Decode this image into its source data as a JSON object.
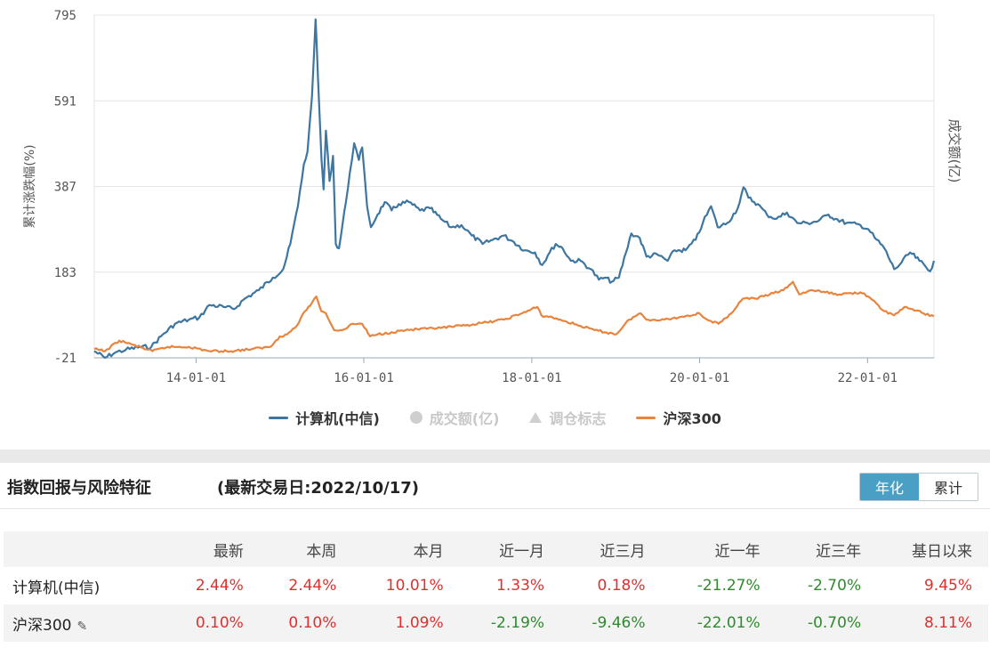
{
  "chart_data": {
    "type": "line",
    "ylabel": "累计涨跌幅(%)",
    "y2label": "成交额(亿)",
    "yticks": [
      -21,
      183,
      387,
      591,
      795
    ],
    "ylim": [
      -21,
      795
    ],
    "xticks": [
      "14-01-01",
      "16-01-01",
      "18-01-01",
      "20-01-01",
      "22-01-01"
    ],
    "x_range": [
      "2012-10-15",
      "2022-10-17"
    ],
    "grid": true,
    "legend_position": "bottom",
    "series": [
      {
        "name": "计算机(中信)",
        "color": "#3d76a0",
        "points": [
          [
            "2012-10-15",
            -5
          ],
          [
            "2012-12-01",
            -21
          ],
          [
            "2013-01-15",
            -8
          ],
          [
            "2013-03-01",
            -2
          ],
          [
            "2013-05-01",
            5
          ],
          [
            "2013-06-20",
            5
          ],
          [
            "2013-08-01",
            30
          ],
          [
            "2013-10-01",
            60
          ],
          [
            "2013-12-01",
            70
          ],
          [
            "2014-01-15",
            75
          ],
          [
            "2014-03-01",
            105
          ],
          [
            "2014-05-01",
            100
          ],
          [
            "2014-06-15",
            95
          ],
          [
            "2014-08-01",
            120
          ],
          [
            "2014-10-01",
            140
          ],
          [
            "2014-12-01",
            170
          ],
          [
            "2015-01-15",
            190
          ],
          [
            "2015-02-15",
            250
          ],
          [
            "2015-03-20",
            340
          ],
          [
            "2015-04-15",
            440
          ],
          [
            "2015-05-01",
            470
          ],
          [
            "2015-05-20",
            600
          ],
          [
            "2015-06-05",
            785
          ],
          [
            "2015-06-15",
            650
          ],
          [
            "2015-07-01",
            450
          ],
          [
            "2015-07-10",
            380
          ],
          [
            "2015-07-20",
            520
          ],
          [
            "2015-08-05",
            400
          ],
          [
            "2015-08-20",
            460
          ],
          [
            "2015-09-01",
            250
          ],
          [
            "2015-09-15",
            240
          ],
          [
            "2015-10-15",
            350
          ],
          [
            "2015-11-01",
            420
          ],
          [
            "2015-11-20",
            490
          ],
          [
            "2015-12-10",
            450
          ],
          [
            "2015-12-25",
            480
          ],
          [
            "2016-01-15",
            340
          ],
          [
            "2016-02-01",
            290
          ],
          [
            "2016-03-01",
            320
          ],
          [
            "2016-04-01",
            350
          ],
          [
            "2016-05-01",
            330
          ],
          [
            "2016-06-01",
            345
          ],
          [
            "2016-07-15",
            350
          ],
          [
            "2016-09-01",
            330
          ],
          [
            "2016-10-15",
            335
          ],
          [
            "2016-12-01",
            310
          ],
          [
            "2017-01-15",
            290
          ],
          [
            "2017-03-01",
            295
          ],
          [
            "2017-04-15",
            270
          ],
          [
            "2017-06-01",
            250
          ],
          [
            "2017-07-15",
            260
          ],
          [
            "2017-09-01",
            270
          ],
          [
            "2017-10-15",
            255
          ],
          [
            "2017-12-01",
            235
          ],
          [
            "2018-01-15",
            230
          ],
          [
            "2018-02-15",
            200
          ],
          [
            "2018-03-20",
            230
          ],
          [
            "2018-04-15",
            250
          ],
          [
            "2018-05-15",
            240
          ],
          [
            "2018-06-20",
            210
          ],
          [
            "2018-08-01",
            210
          ],
          [
            "2018-09-15",
            190
          ],
          [
            "2018-10-20",
            165
          ],
          [
            "2018-11-15",
            170
          ],
          [
            "2018-12-15",
            160
          ],
          [
            "2019-01-15",
            170
          ],
          [
            "2019-02-15",
            230
          ],
          [
            "2019-03-10",
            275
          ],
          [
            "2019-04-15",
            265
          ],
          [
            "2019-05-15",
            220
          ],
          [
            "2019-07-01",
            225
          ],
          [
            "2019-08-15",
            210
          ],
          [
            "2019-09-15",
            235
          ],
          [
            "2019-11-01",
            235
          ],
          [
            "2019-12-15",
            260
          ],
          [
            "2020-01-15",
            300
          ],
          [
            "2020-02-20",
            340
          ],
          [
            "2020-03-20",
            290
          ],
          [
            "2020-05-01",
            300
          ],
          [
            "2020-06-15",
            335
          ],
          [
            "2020-07-10",
            385
          ],
          [
            "2020-08-01",
            360
          ],
          [
            "2020-09-10",
            345
          ],
          [
            "2020-10-20",
            320
          ],
          [
            "2020-12-01",
            310
          ],
          [
            "2021-01-15",
            325
          ],
          [
            "2021-03-01",
            300
          ],
          [
            "2021-04-15",
            300
          ],
          [
            "2021-06-01",
            305
          ],
          [
            "2021-07-15",
            320
          ],
          [
            "2021-08-15",
            310
          ],
          [
            "2021-10-01",
            300
          ],
          [
            "2021-12-01",
            295
          ],
          [
            "2022-01-05",
            285
          ],
          [
            "2022-02-01",
            265
          ],
          [
            "2022-03-15",
            240
          ],
          [
            "2022-04-27",
            190
          ],
          [
            "2022-05-20",
            200
          ],
          [
            "2022-07-05",
            230
          ],
          [
            "2022-08-15",
            210
          ],
          [
            "2022-09-30",
            185
          ],
          [
            "2022-10-17",
            210
          ]
        ]
      },
      {
        "name": "沪深300",
        "color": "#e8843d",
        "points": [
          [
            "2012-10-15",
            0
          ],
          [
            "2012-12-01",
            -5
          ],
          [
            "2013-02-01",
            20
          ],
          [
            "2013-04-01",
            10
          ],
          [
            "2013-06-25",
            -5
          ],
          [
            "2013-09-01",
            5
          ],
          [
            "2013-12-01",
            5
          ],
          [
            "2014-03-01",
            -5
          ],
          [
            "2014-06-01",
            -5
          ],
          [
            "2014-09-01",
            0
          ],
          [
            "2014-11-20",
            5
          ],
          [
            "2014-12-31",
            30
          ],
          [
            "2015-02-01",
            35
          ],
          [
            "2015-03-15",
            55
          ],
          [
            "2015-04-20",
            90
          ],
          [
            "2015-05-20",
            110
          ],
          [
            "2015-06-08",
            125
          ],
          [
            "2015-06-30",
            90
          ],
          [
            "2015-07-20",
            85
          ],
          [
            "2015-08-25",
            45
          ],
          [
            "2015-09-30",
            45
          ],
          [
            "2015-11-15",
            60
          ],
          [
            "2015-12-25",
            60
          ],
          [
            "2016-01-28",
            30
          ],
          [
            "2016-03-01",
            35
          ],
          [
            "2016-05-01",
            40
          ],
          [
            "2016-07-01",
            45
          ],
          [
            "2016-10-01",
            48
          ],
          [
            "2016-12-01",
            50
          ],
          [
            "2017-03-01",
            55
          ],
          [
            "2017-06-01",
            62
          ],
          [
            "2017-09-01",
            70
          ],
          [
            "2017-11-20",
            85
          ],
          [
            "2018-01-25",
            100
          ],
          [
            "2018-02-12",
            80
          ],
          [
            "2018-04-01",
            75
          ],
          [
            "2018-06-01",
            65
          ],
          [
            "2018-08-01",
            55
          ],
          [
            "2018-10-01",
            45
          ],
          [
            "2019-01-03",
            35
          ],
          [
            "2019-03-01",
            70
          ],
          [
            "2019-04-19",
            85
          ],
          [
            "2019-05-15",
            70
          ],
          [
            "2019-08-01",
            70
          ],
          [
            "2019-10-01",
            75
          ],
          [
            "2019-12-31",
            85
          ],
          [
            "2020-02-03",
            70
          ],
          [
            "2020-03-23",
            60
          ],
          [
            "2020-05-01",
            75
          ],
          [
            "2020-07-08",
            120
          ],
          [
            "2020-09-01",
            120
          ],
          [
            "2020-11-01",
            130
          ],
          [
            "2020-12-31",
            140
          ],
          [
            "2021-02-10",
            160
          ],
          [
            "2021-03-10",
            130
          ],
          [
            "2021-05-01",
            140
          ],
          [
            "2021-07-01",
            135
          ],
          [
            "2021-09-01",
            130
          ],
          [
            "2021-12-01",
            135
          ],
          [
            "2022-01-04",
            125
          ],
          [
            "2022-03-15",
            90
          ],
          [
            "2022-04-26",
            80
          ],
          [
            "2022-06-10",
            100
          ],
          [
            "2022-07-15",
            95
          ],
          [
            "2022-09-01",
            85
          ],
          [
            "2022-10-17",
            78
          ]
        ]
      }
    ]
  },
  "legend": [
    {
      "label": "计算机(中信)",
      "kind": "line",
      "color": "#3d76a0",
      "active": true
    },
    {
      "label": "成交额(亿)",
      "kind": "dot",
      "color": "#cfcfcf",
      "active": false
    },
    {
      "label": "调仓标志",
      "kind": "triangle",
      "color": "#cfcfcf",
      "active": false
    },
    {
      "label": "沪深300",
      "kind": "line",
      "color": "#e8843d",
      "active": true
    }
  ],
  "section": {
    "title": "指数回报与风险特征",
    "date": "(最新交易日:2022/10/17)",
    "toggle": [
      "年化",
      "累计"
    ],
    "active_toggle": "年化"
  },
  "table": {
    "headers": [
      "",
      "最新",
      "本周",
      "本月",
      "近一月",
      "近三月",
      "近一年",
      "近三年",
      "基日以来"
    ],
    "rows": [
      {
        "name": "计算机(中信)",
        "values": [
          "2.44%",
          "2.44%",
          "10.01%",
          "1.33%",
          "0.18%",
          "-21.27%",
          "-2.70%",
          "9.45%"
        ]
      },
      {
        "name": "沪深300",
        "values": [
          "0.10%",
          "0.10%",
          "1.09%",
          "-2.19%",
          "-9.46%",
          "-22.01%",
          "-0.70%",
          "8.11%"
        ]
      }
    ]
  }
}
